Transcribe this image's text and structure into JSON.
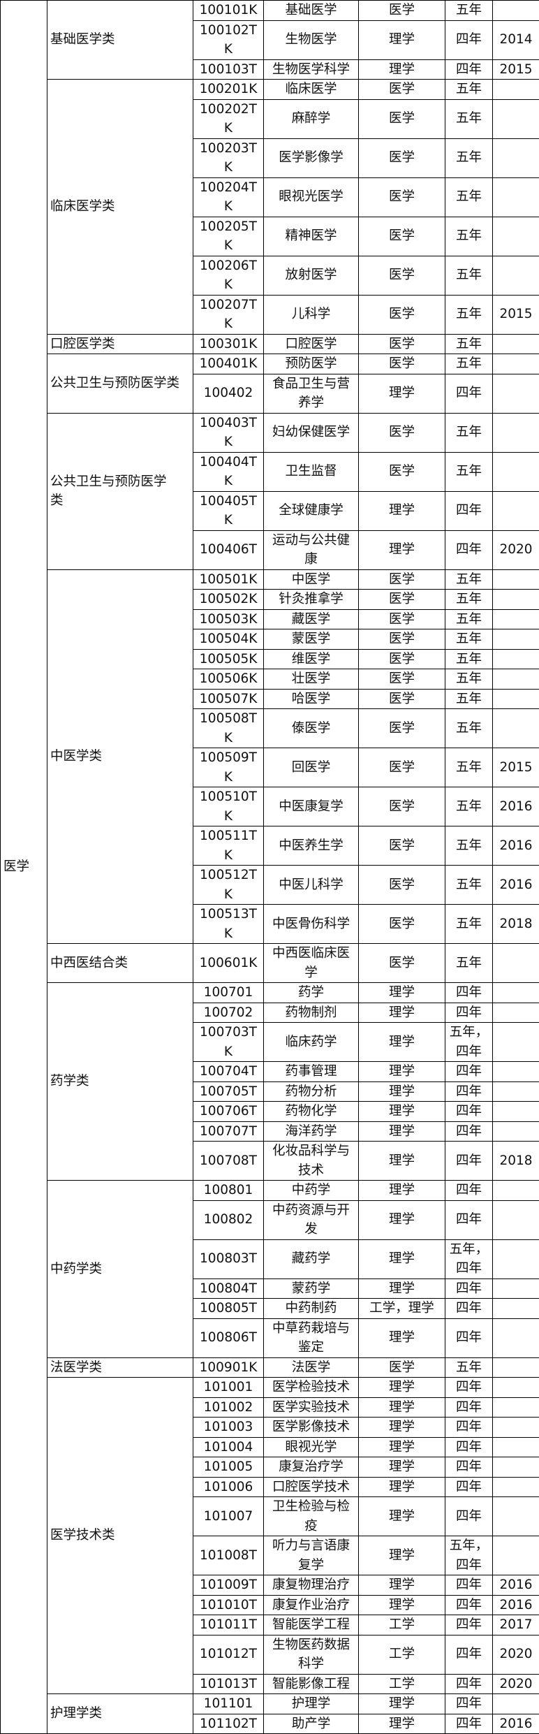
{
  "discipline": "医学",
  "groups": [
    {
      "name": "基础医学类",
      "rows": [
        [
          "100101K",
          "基础医学",
          "医学",
          "五年",
          ""
        ],
        [
          "100102TK",
          "生物医学",
          "理学",
          "四年",
          "2014"
        ],
        [
          "100103T",
          "生物医学科学",
          "理学",
          "四年",
          "2015"
        ]
      ]
    },
    {
      "name": "临床医学类",
      "rows": [
        [
          "100201K",
          "临床医学",
          "医学",
          "五年",
          ""
        ],
        [
          "100202TK",
          "麻醉学",
          "医学",
          "五年",
          ""
        ],
        [
          "100203TK",
          "医学影像学",
          "医学",
          "五年",
          ""
        ],
        [
          "100204TK",
          "眼视光医学",
          "医学",
          "五年",
          ""
        ],
        [
          "100205TK",
          "精神医学",
          "医学",
          "五年",
          ""
        ],
        [
          "100206TK",
          "放射医学",
          "医学",
          "五年",
          ""
        ],
        [
          "100207TK",
          "儿科学",
          "医学",
          "五年",
          "2015"
        ]
      ]
    },
    {
      "name": "口腔医学类",
      "rows": [
        [
          "100301K",
          "口腔医学",
          "医学",
          "五年",
          ""
        ]
      ]
    },
    {
      "name": "公共卫生与预防医学类",
      "rows": [
        [
          "100401K",
          "预防医学",
          "医学",
          "五年",
          ""
        ],
        [
          "100402",
          "食品卫生与营养学",
          "理学",
          "四年",
          ""
        ]
      ]
    },
    {
      "name": "公共卫生与预防医学类",
      "rows": [
        [
          "100403TK",
          "妇幼保健医学",
          "医学",
          "五年",
          ""
        ],
        [
          "100404TK",
          "卫生监督",
          "医学",
          "五年",
          ""
        ],
        [
          "100405TK",
          "全球健康学",
          "理学",
          "四年",
          ""
        ],
        [
          "100406T",
          "运动与公共健康",
          "理学",
          "四年",
          "2020"
        ]
      ]
    },
    {
      "name": "中医学类",
      "rows": [
        [
          "100501K",
          "中医学",
          "医学",
          "五年",
          ""
        ],
        [
          "100502K",
          "针灸推拿学",
          "医学",
          "五年",
          ""
        ],
        [
          "100503K",
          "藏医学",
          "医学",
          "五年",
          ""
        ],
        [
          "100504K",
          "蒙医学",
          "医学",
          "五年",
          ""
        ],
        [
          "100505K",
          "维医学",
          "医学",
          "五年",
          ""
        ],
        [
          "100506K",
          "壮医学",
          "医学",
          "五年",
          ""
        ],
        [
          "100507K",
          "哈医学",
          "医学",
          "五年",
          ""
        ],
        [
          "100508TK",
          "傣医学",
          "医学",
          "五年",
          ""
        ],
        [
          "100509TK",
          "回医学",
          "医学",
          "五年",
          "2015"
        ],
        [
          "100510TK",
          "中医康复学",
          "医学",
          "五年",
          "2016"
        ],
        [
          "100511TK",
          "中医养生学",
          "医学",
          "五年",
          "2016"
        ],
        [
          "100512TK",
          "中医儿科学",
          "医学",
          "五年",
          "2016"
        ],
        [
          "100513TK",
          "中医骨伤科学",
          "医学",
          "五年",
          "2018"
        ]
      ]
    },
    {
      "name": "中西医结合类",
      "rows": [
        [
          "100601K",
          "中西医临床医学",
          "医学",
          "五年",
          ""
        ]
      ]
    },
    {
      "name": "药学类",
      "rows": [
        [
          "100701",
          "药学",
          "理学",
          "四年",
          ""
        ],
        [
          "100702",
          "药物制剂",
          "理学",
          "四年",
          ""
        ],
        [
          "100703TK",
          "临床药学",
          "理学",
          "五年，四年",
          ""
        ],
        [
          "100704T",
          "药事管理",
          "理学",
          "四年",
          ""
        ],
        [
          "100705T",
          "药物分析",
          "理学",
          "四年",
          ""
        ],
        [
          "100706T",
          "药物化学",
          "理学",
          "四年",
          ""
        ],
        [
          "100707T",
          "海洋药学",
          "理学",
          "四年",
          ""
        ],
        [
          "100708T",
          "化妆品科学与技术",
          "理学",
          "四年",
          "2018"
        ]
      ]
    },
    {
      "name": "中药学类",
      "rows": [
        [
          "100801",
          "中药学",
          "理学",
          "四年",
          ""
        ],
        [
          "100802",
          "中药资源与开发",
          "理学",
          "四年",
          ""
        ],
        [
          "100803T",
          "藏药学",
          "理学",
          "五年，四年",
          ""
        ],
        [
          "100804T",
          "蒙药学",
          "理学",
          "四年",
          ""
        ],
        [
          "100805T",
          "中药制药",
          "工学，理学",
          "四年",
          ""
        ],
        [
          "100806T",
          "中草药栽培与鉴定",
          "理学",
          "四年",
          ""
        ]
      ]
    },
    {
      "name": "法医学类",
      "rows": [
        [
          "100901K",
          "法医学",
          "医学",
          "五年",
          ""
        ]
      ]
    },
    {
      "name": "医学技术类",
      "rows": [
        [
          "101001",
          "医学检验技术",
          "理学",
          "四年",
          ""
        ],
        [
          "101002",
          "医学实验技术",
          "理学",
          "四年",
          ""
        ],
        [
          "101003",
          "医学影像技术",
          "理学",
          "四年",
          ""
        ],
        [
          "101004",
          "眼视光学",
          "理学",
          "四年",
          ""
        ],
        [
          "101005",
          "康复治疗学",
          "理学",
          "四年",
          ""
        ],
        [
          "101006",
          "口腔医学技术",
          "理学",
          "四年",
          ""
        ],
        [
          "101007",
          "卫生检验与检疫",
          "理学",
          "四年",
          ""
        ],
        [
          "101008T",
          "听力与言语康复学",
          "理学",
          "五年，四年",
          ""
        ],
        [
          "101009T",
          "康复物理治疗",
          "理学",
          "四年",
          "2016"
        ],
        [
          "101010T",
          "康复作业治疗",
          "理学",
          "四年",
          "2016"
        ],
        [
          "101011T",
          "智能医学工程",
          "工学",
          "四年",
          "2017"
        ],
        [
          "101012T",
          "生物医药数据科学",
          "工学",
          "四年",
          "2020"
        ],
        [
          "101013T",
          "智能影像工程",
          "工学",
          "四年",
          "2020"
        ]
      ]
    },
    {
      "name": "护理学类",
      "rows": [
        [
          "101101",
          "护理学",
          "理学",
          "四年",
          ""
        ],
        [
          "101102T",
          "助产学",
          "理学",
          "四年",
          "2016"
        ]
      ]
    }
  ]
}
